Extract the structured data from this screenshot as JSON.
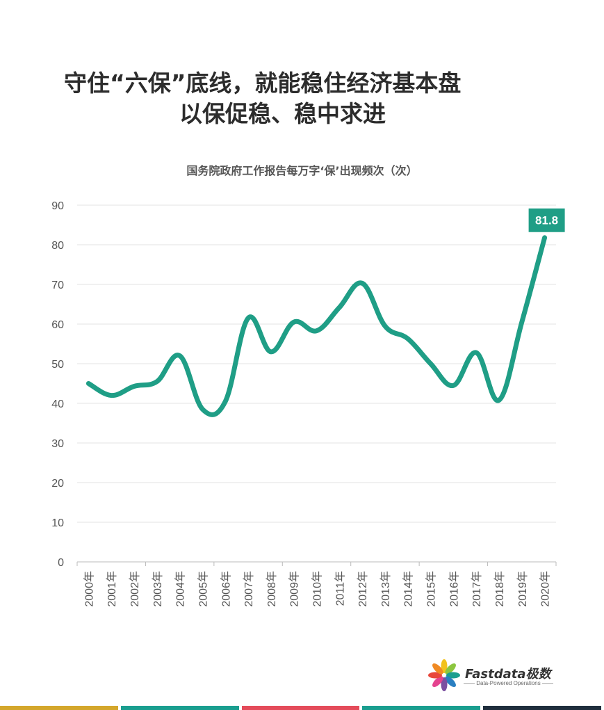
{
  "title": {
    "line1": "守住“六保”底线，就能稳住经济基本盘",
    "line2": "以保促稳、稳中求进"
  },
  "subtitle": "国务院政府工作报告每万字‘保’出现频次（次）",
  "chart_data": {
    "type": "line",
    "categories": [
      "2000年",
      "2001年",
      "2002年",
      "2003年",
      "2004年",
      "2005年",
      "2006年",
      "2007年",
      "2008年",
      "2009年",
      "2010年",
      "2011年",
      "2012年",
      "2013年",
      "2014年",
      "2015年",
      "2016年",
      "2017年",
      "2018年",
      "2019年",
      "2020年"
    ],
    "series": [
      {
        "values": [
          45,
          42,
          44.3,
          45.5,
          52,
          38.5,
          40.5,
          61.5,
          53,
          60.5,
          58.3,
          64.2,
          70.3,
          59.5,
          56.3,
          50,
          44.5,
          52.8,
          40.8,
          60.5,
          81.8
        ]
      }
    ],
    "ylim": [
      0,
      90
    ],
    "yticks": [
      0,
      10,
      20,
      30,
      40,
      50,
      60,
      70,
      80,
      90
    ],
    "grid": true,
    "data_label": {
      "index": 20,
      "text": "81.8"
    },
    "line_color": "#1f9e86"
  },
  "logo": {
    "name": "Fastdata极数",
    "tagline": "Data-Powered Operations"
  },
  "bottom_bar_colors": [
    "#d4a72c",
    "#1a9e8f",
    "#e44b5a",
    "#1a9e8f",
    "#1f2e3d"
  ]
}
